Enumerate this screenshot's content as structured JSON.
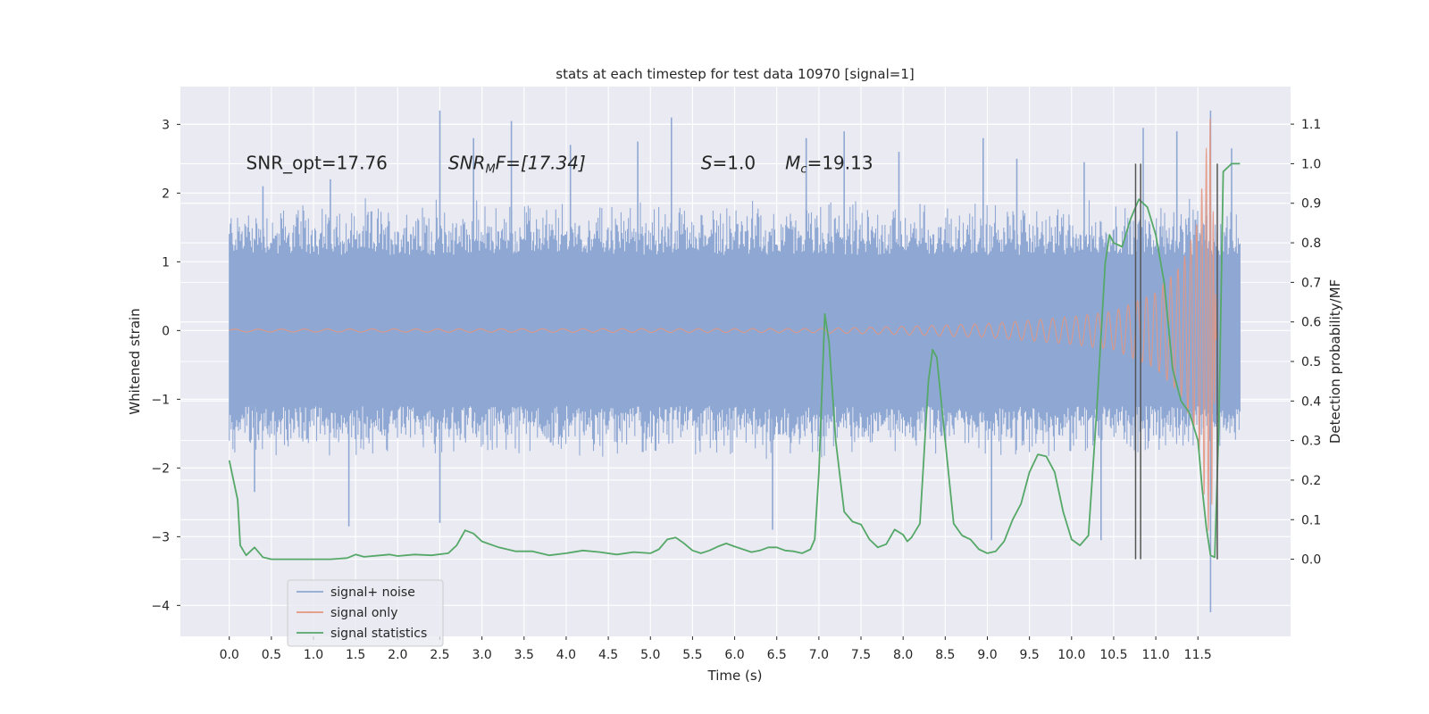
{
  "chart_data": {
    "type": "line",
    "title": "stats at each timestep for test data 10970 [signal=1]",
    "xlabel": "Time (s)",
    "ylabel": "Whitened strain",
    "y2label": "Detection probability/MF",
    "xlim": [
      -0.58,
      12.6
    ],
    "ylim": [
      -4.45,
      3.55
    ],
    "y2lim": [
      -0.195,
      1.195
    ],
    "x_ticks": [
      0.0,
      0.5,
      1.0,
      1.5,
      2.0,
      2.5,
      3.0,
      3.5,
      4.0,
      4.5,
      5.0,
      5.5,
      6.0,
      6.5,
      7.0,
      7.5,
      8.0,
      8.5,
      9.0,
      9.5,
      10.0,
      10.5,
      11.0,
      11.5
    ],
    "x_tick_labels": [
      "0.0",
      "0.5",
      "1.0",
      "1.5",
      "2.0",
      "2.5",
      "3.0",
      "3.5",
      "4.0",
      "4.5",
      "5.0",
      "5.5",
      "6.0",
      "6.5",
      "7.0",
      "7.5",
      "8.0",
      "8.5",
      "9.0",
      "9.5",
      "10.0",
      "10.5",
      "11.0",
      "11.5"
    ],
    "y_ticks": [
      -4,
      -3,
      -2,
      -1,
      0,
      1,
      2,
      3
    ],
    "y_tick_labels": [
      "−4",
      "−3",
      "−2",
      "−1",
      "0",
      "1",
      "2",
      "3"
    ],
    "y2_ticks": [
      0.0,
      0.1,
      0.2,
      0.3,
      0.4,
      0.5,
      0.6,
      0.7,
      0.8,
      0.9,
      1.0,
      1.1
    ],
    "y2_tick_labels": [
      "0.0",
      "0.1",
      "0.2",
      "0.3",
      "0.4",
      "0.5",
      "0.6",
      "0.7",
      "0.8",
      "0.9",
      "1.0",
      "1.1"
    ],
    "grid": true,
    "legend_position": "bottom-left",
    "annotations": [
      {
        "text": "SNR_opt=17.76",
        "x": 0.2
      },
      {
        "text": "SNR",
        "sub": "M",
        "tail": "F=[17.34]",
        "italic": true,
        "x": 2.6
      },
      {
        "text": "S",
        "tail": "=1.0",
        "italic": true,
        "x": 5.6
      },
      {
        "text": "M",
        "sub": "c",
        "tail": "=19.13",
        "italic": true,
        "x": 6.6
      }
    ],
    "annotation_y": 2.45,
    "series": [
      {
        "name": "signal+ noise",
        "axis": "left",
        "color": "#8fa8d3",
        "kind": "noise_band",
        "x_range": [
          0.0,
          12.0
        ],
        "core_half_width": 1.1,
        "typical_extent": [
          -1.9,
          1.95
        ],
        "peaks": [
          [
            0.3,
            -2.35
          ],
          [
            0.4,
            2.1
          ],
          [
            1.2,
            2.2
          ],
          [
            1.42,
            -2.85
          ],
          [
            2.5,
            3.2
          ],
          [
            2.5,
            -2.8
          ],
          [
            2.9,
            2.8
          ],
          [
            3.35,
            3.05
          ],
          [
            4.05,
            2.7
          ],
          [
            4.85,
            2.75
          ],
          [
            5.25,
            3.1
          ],
          [
            6.45,
            -2.9
          ],
          [
            6.85,
            2.8
          ],
          [
            7.3,
            2.9
          ],
          [
            7.95,
            2.6
          ],
          [
            8.95,
            2.8
          ],
          [
            9.05,
            -3.05
          ],
          [
            9.35,
            2.5
          ],
          [
            10.15,
            2.45
          ],
          [
            10.35,
            -3.05
          ],
          [
            10.85,
            2.95
          ],
          [
            11.25,
            2.9
          ],
          [
            11.65,
            -4.1
          ],
          [
            11.65,
            3.2
          ],
          [
            11.9,
            2.65
          ]
        ]
      },
      {
        "name": "signal only",
        "axis": "left",
        "color": "#e4967f",
        "kind": "chirp",
        "x_range": [
          0.0,
          11.72
        ],
        "merger_time": 11.72,
        "amplitude_envelope": [
          [
            0.0,
            0.02
          ],
          [
            7.0,
            0.03
          ],
          [
            8.0,
            0.06
          ],
          [
            9.0,
            0.1
          ],
          [
            10.0,
            0.2
          ],
          [
            10.5,
            0.28
          ],
          [
            11.0,
            0.55
          ],
          [
            11.3,
            0.95
          ],
          [
            11.5,
            1.6
          ],
          [
            11.65,
            3.2
          ],
          [
            11.72,
            0.0
          ]
        ]
      },
      {
        "name": "signal statistics",
        "axis": "right",
        "color": "#55a868",
        "kind": "line",
        "x": [
          0.0,
          0.1,
          0.13,
          0.2,
          0.3,
          0.4,
          0.5,
          0.6,
          0.7,
          0.8,
          1.0,
          1.2,
          1.4,
          1.5,
          1.6,
          1.8,
          1.9,
          2.0,
          2.2,
          2.4,
          2.6,
          2.7,
          2.8,
          2.9,
          3.0,
          3.2,
          3.4,
          3.6,
          3.8,
          4.0,
          4.2,
          4.4,
          4.6,
          4.8,
          5.0,
          5.1,
          5.2,
          5.3,
          5.4,
          5.5,
          5.6,
          5.7,
          5.8,
          5.9,
          6.0,
          6.1,
          6.2,
          6.3,
          6.4,
          6.5,
          6.6,
          6.7,
          6.8,
          6.9,
          6.95,
          7.0,
          7.07,
          7.12,
          7.2,
          7.3,
          7.4,
          7.5,
          7.6,
          7.7,
          7.8,
          7.9,
          8.0,
          8.05,
          8.1,
          8.2,
          8.3,
          8.35,
          8.4,
          8.5,
          8.6,
          8.7,
          8.8,
          8.9,
          9.0,
          9.1,
          9.2,
          9.3,
          9.4,
          9.5,
          9.6,
          9.7,
          9.8,
          9.9,
          10.0,
          10.1,
          10.2,
          10.3,
          10.4,
          10.45,
          10.5,
          10.6,
          10.7,
          10.8,
          10.9,
          11.0,
          11.1,
          11.2,
          11.3,
          11.4,
          11.5,
          11.55,
          11.6,
          11.65,
          11.7,
          11.75,
          11.8,
          11.9,
          12.0
        ],
        "y": [
          0.25,
          0.15,
          0.035,
          0.01,
          0.03,
          0.005,
          0.0,
          0.0,
          0.0,
          0.0,
          0.0,
          0.0,
          0.003,
          0.012,
          0.006,
          0.01,
          0.012,
          0.008,
          0.012,
          0.01,
          0.015,
          0.035,
          0.073,
          0.065,
          0.045,
          0.03,
          0.02,
          0.02,
          0.01,
          0.015,
          0.022,
          0.018,
          0.012,
          0.018,
          0.015,
          0.025,
          0.05,
          0.055,
          0.04,
          0.022,
          0.015,
          0.022,
          0.032,
          0.04,
          0.032,
          0.025,
          0.018,
          0.022,
          0.03,
          0.03,
          0.022,
          0.02,
          0.015,
          0.025,
          0.05,
          0.22,
          0.62,
          0.55,
          0.3,
          0.12,
          0.095,
          0.088,
          0.05,
          0.03,
          0.038,
          0.075,
          0.062,
          0.045,
          0.055,
          0.09,
          0.45,
          0.53,
          0.51,
          0.3,
          0.09,
          0.06,
          0.05,
          0.025,
          0.015,
          0.02,
          0.045,
          0.1,
          0.14,
          0.22,
          0.265,
          0.26,
          0.22,
          0.12,
          0.05,
          0.035,
          0.06,
          0.38,
          0.75,
          0.82,
          0.8,
          0.79,
          0.86,
          0.91,
          0.89,
          0.82,
          0.7,
          0.48,
          0.4,
          0.37,
          0.3,
          0.18,
          0.08,
          0.01,
          0.005,
          0.35,
          0.98,
          1.0,
          1.0
        ]
      }
    ],
    "vertical_lines": [
      {
        "x": 10.76,
        "color": "#555555"
      },
      {
        "x": 10.82,
        "color": "#555555"
      },
      {
        "x": 11.73,
        "color": "#555555"
      }
    ],
    "vertical_line_range": [
      0.0,
      1.0
    ]
  }
}
